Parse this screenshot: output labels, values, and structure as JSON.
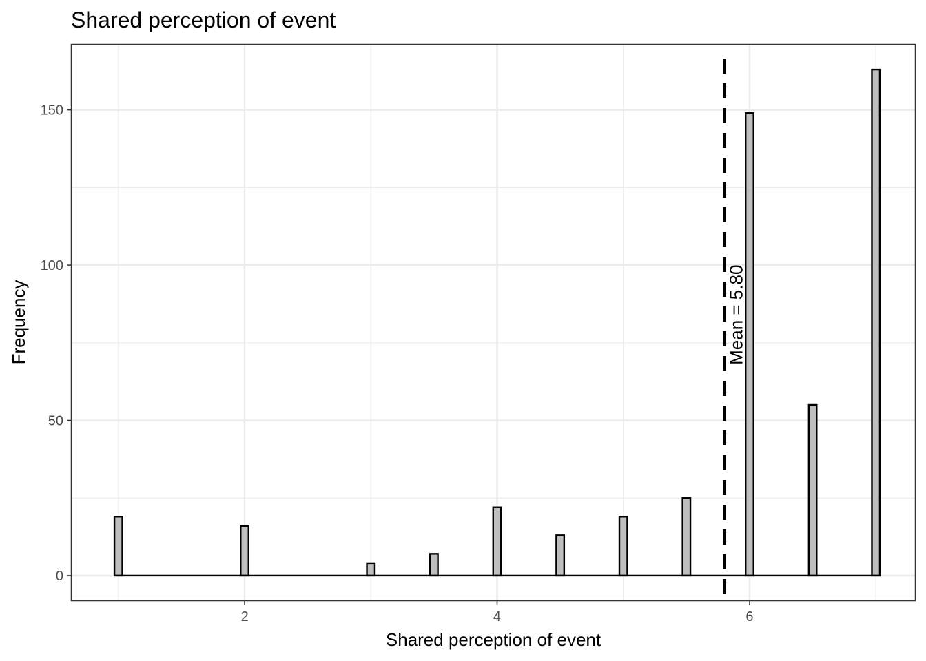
{
  "chart_data": {
    "type": "bar",
    "title": "Shared perception of event",
    "xlabel": "Shared perception of event",
    "ylabel": "Frequency",
    "x": [
      1.0,
      1.5,
      2.0,
      2.5,
      3.0,
      3.5,
      4.0,
      4.5,
      5.0,
      5.5,
      6.0,
      6.5,
      7.0
    ],
    "values": [
      19,
      0,
      16,
      0,
      4,
      7,
      22,
      13,
      19,
      25,
      149,
      55,
      163
    ],
    "xlim": [
      0.63,
      7.31
    ],
    "ylim": [
      -8,
      171
    ],
    "xticks": [
      2,
      4,
      6
    ],
    "yticks": [
      0,
      50,
      100,
      150
    ],
    "xticks_labels": [
      "2",
      "4",
      "6"
    ],
    "yticks_labels": [
      "0",
      "50",
      "100",
      "150"
    ],
    "bar_fill": "#bebebe",
    "bar_outline": "#000000",
    "grid": true,
    "mean_line": {
      "value": 5.8,
      "label": "Mean = 5.80",
      "style": "dashed",
      "color": "#000000"
    }
  }
}
